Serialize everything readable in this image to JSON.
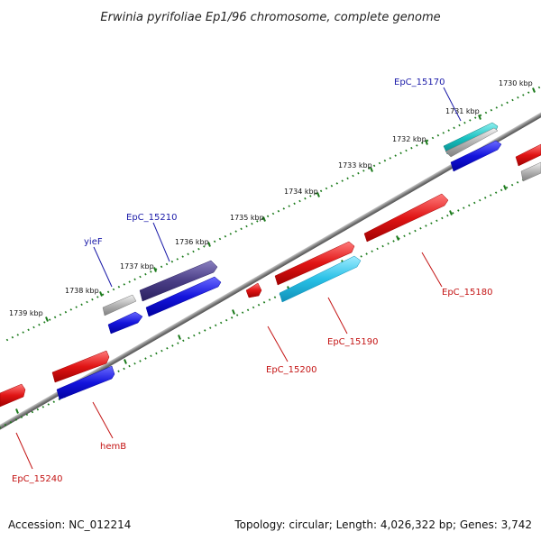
{
  "title": "Erwinia pyrifoliae Ep1/96 chromosome, complete genome",
  "footer": {
    "accession": "Accession: NC_012214",
    "summary": "Topology: circular; Length: 4,026,322 bp; Genes: 3,742"
  },
  "colors": {
    "backbone": "#808080",
    "tick": "#1a7a1a",
    "label_blue": "#1a1aa8",
    "label_red": "#c41414",
    "gene_red": "#e01414",
    "gene_blue": "#1414dc",
    "gene_gray": "#b4b4b4",
    "gene_navy": "#4a3e86",
    "gene_cyan": "#28c0e6",
    "gene_teal": "#18c0c0"
  },
  "ticks": [
    {
      "label": "1730 kbp"
    },
    {
      "label": "1731 kbp"
    },
    {
      "label": "1732 kbp"
    },
    {
      "label": "1733 kbp"
    },
    {
      "label": "1734 kbp"
    },
    {
      "label": "1735 kbp"
    },
    {
      "label": "1736 kbp"
    },
    {
      "label": "1737 kbp"
    },
    {
      "label": "1738 kbp"
    },
    {
      "label": "1739 kbp"
    }
  ],
  "genes": [
    {
      "name": "EpC_15170",
      "strand": "upper",
      "color": "teal"
    },
    {
      "name": "EpC_15180",
      "strand": "lower",
      "color": "red"
    },
    {
      "name": "EpC_15190",
      "strand": "lower",
      "color": "cyan"
    },
    {
      "name": "EpC_15200",
      "strand": "lower",
      "color": "red"
    },
    {
      "name": "EpC_15210",
      "strand": "upper",
      "color": "navy"
    },
    {
      "name": "yieF",
      "strand": "upper",
      "color": "gray"
    },
    {
      "name": "hemB",
      "strand": "lower",
      "color": "blue"
    },
    {
      "name": "EpC_15240",
      "strand": "lower",
      "color": "red"
    }
  ]
}
